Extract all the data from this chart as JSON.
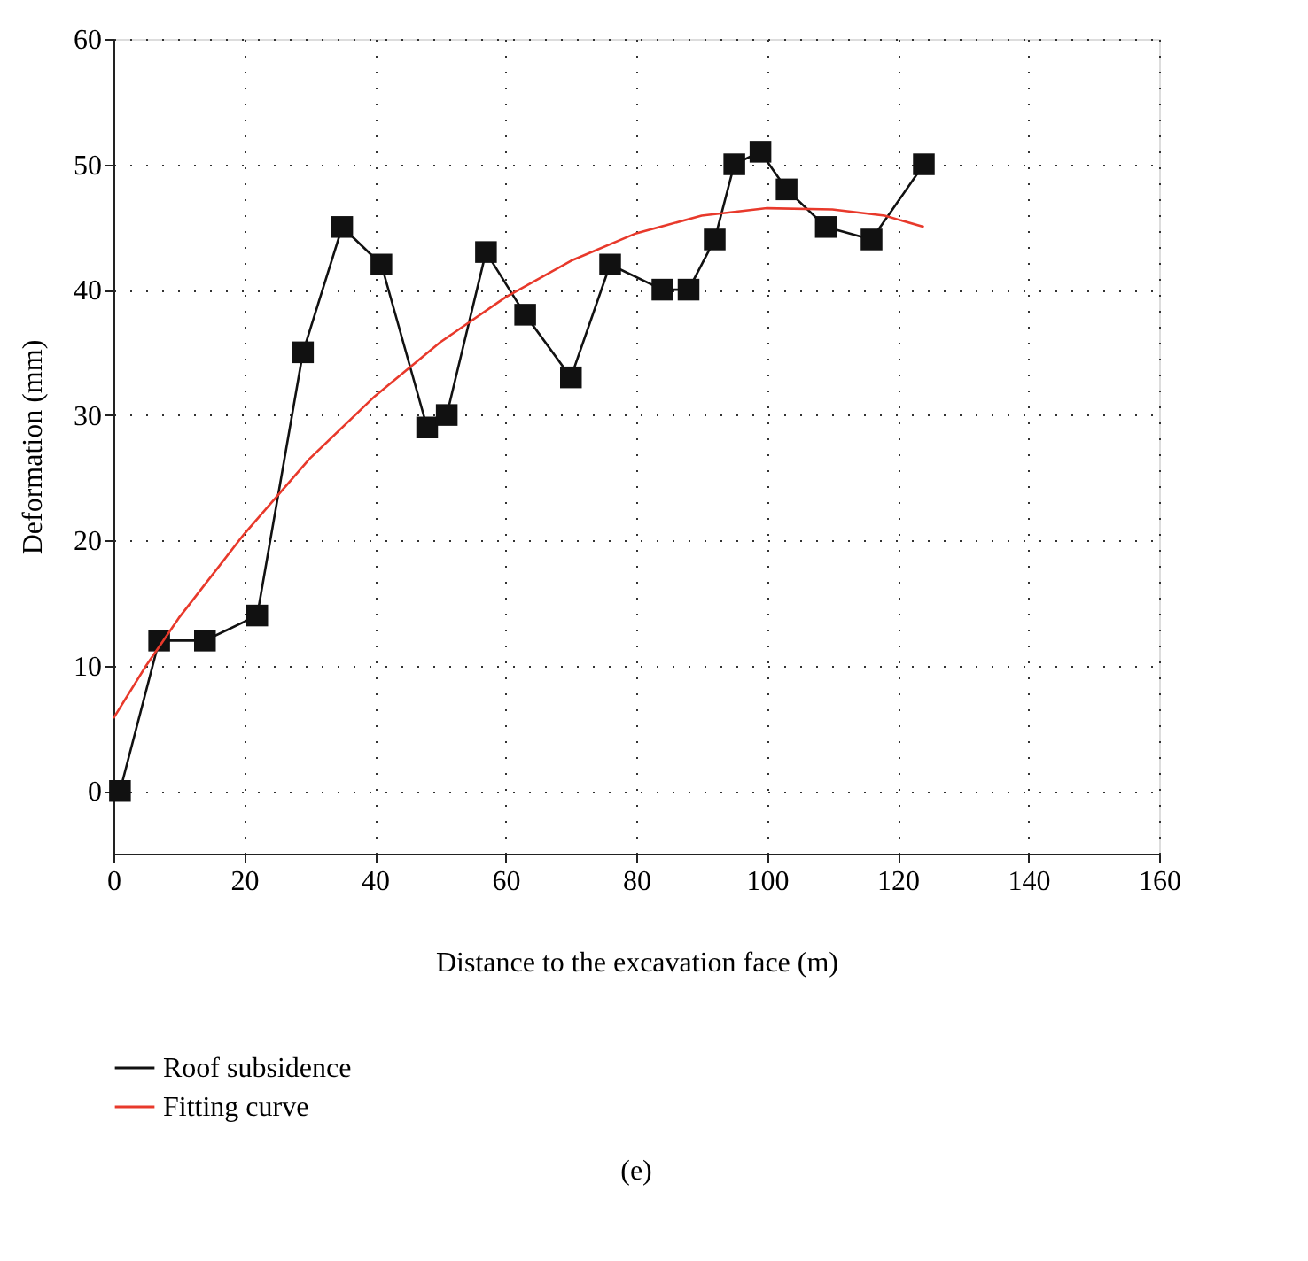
{
  "chart_data": {
    "type": "line",
    "xlabel": "Distance to the excavation face (m)",
    "ylabel": "Deformation (mm)",
    "xlim": [
      0,
      160
    ],
    "xticks": [
      0,
      20,
      40,
      60,
      80,
      100,
      120,
      140,
      160
    ],
    "ylim": [
      -5,
      60
    ],
    "yticks": [
      0,
      10,
      20,
      30,
      40,
      50,
      60
    ],
    "grid": true,
    "legend": "bottom left",
    "annotations": [
      "(e)"
    ],
    "series": [
      {
        "name": "Roof subsidence",
        "color": "#111111",
        "marker": "square",
        "line_style": "solid",
        "x": [
          1,
          7,
          14,
          22,
          29,
          35,
          41,
          48,
          51,
          57,
          63,
          70,
          76,
          84,
          88,
          92,
          95,
          99,
          103,
          109,
          116,
          124
        ],
        "values": [
          0,
          12,
          12,
          14,
          35,
          45,
          42,
          29,
          30,
          43,
          38,
          33,
          42,
          40,
          40,
          44,
          50,
          51,
          48,
          45,
          44,
          50
        ]
      },
      {
        "name": "Fitting curve",
        "color": "#e8392b",
        "marker": "none",
        "line_style": "solid",
        "x": [
          0,
          5,
          10,
          20,
          30,
          40,
          50,
          60,
          70,
          80,
          90,
          100,
          110,
          118,
          124
        ],
        "values": [
          5.8,
          10,
          13.8,
          20.5,
          26.5,
          31.5,
          35.8,
          39.4,
          42.3,
          44.5,
          45.9,
          46.5,
          46.4,
          45.9,
          45
        ]
      }
    ]
  }
}
